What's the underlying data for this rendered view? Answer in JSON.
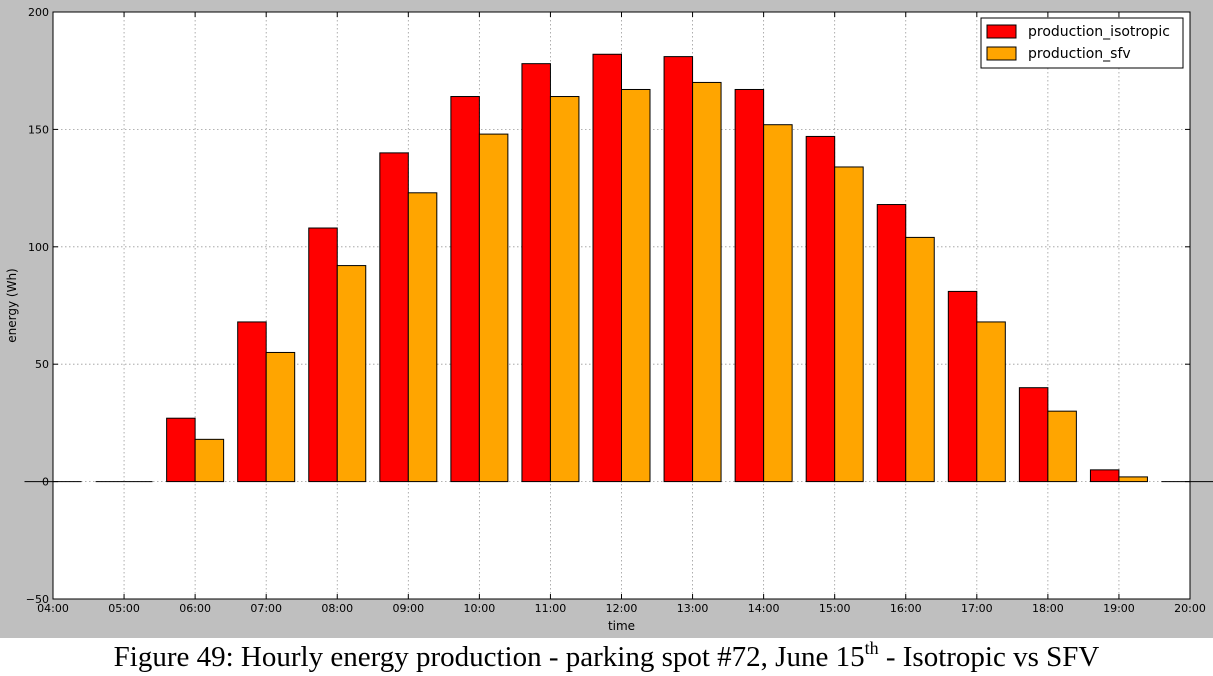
{
  "chart_data": {
    "type": "bar",
    "title": "",
    "xlabel": "time",
    "ylabel": "energy (Wh)",
    "ylim": [
      -50,
      200
    ],
    "yticks": [
      -50,
      0,
      50,
      100,
      150,
      200
    ],
    "xticks": [
      "04:00",
      "05:00",
      "06:00",
      "07:00",
      "08:00",
      "09:00",
      "10:00",
      "11:00",
      "12:00",
      "13:00",
      "14:00",
      "15:00",
      "16:00",
      "17:00",
      "18:00",
      "19:00",
      "20:00"
    ],
    "categories": [
      "04:00",
      "05:00",
      "06:00",
      "07:00",
      "08:00",
      "09:00",
      "10:00",
      "11:00",
      "12:00",
      "13:00",
      "14:00",
      "15:00",
      "16:00",
      "17:00",
      "18:00",
      "19:00",
      "20:00"
    ],
    "series": [
      {
        "name": "production_isotropic",
        "color": "#ff0000",
        "values": [
          0,
          0,
          27,
          68,
          108,
          140,
          164,
          178,
          182,
          181,
          167,
          147,
          118,
          81,
          40,
          5,
          0
        ]
      },
      {
        "name": "production_sfv",
        "color": "#ffa500",
        "values": [
          0,
          0,
          18,
          55,
          92,
          123,
          148,
          164,
          167,
          170,
          152,
          134,
          104,
          68,
          30,
          2,
          0
        ]
      }
    ],
    "grid": true,
    "legend_position": "top-right"
  },
  "caption": {
    "text_before": "Figure 49: Hourly energy production - parking spot #72, June 15",
    "superscript": "th",
    "text_after": " - Isotropic vs SFV"
  }
}
